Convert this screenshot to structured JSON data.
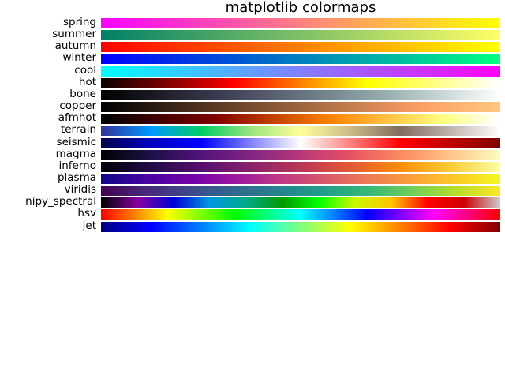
{
  "chart_data": {
    "type": "heatmap",
    "title": "matplotlib colormaps",
    "xlabel": "",
    "ylabel": "",
    "grid": false,
    "colormaps": [
      {
        "name": "spring",
        "colors": [
          "#ff00ff",
          "#ff40bf",
          "#ff8080",
          "#ffbf40",
          "#ffff00"
        ]
      },
      {
        "name": "summer",
        "colors": [
          "#008066",
          "#40a066",
          "#80c066",
          "#bfdf66",
          "#ffff66"
        ]
      },
      {
        "name": "autumn",
        "colors": [
          "#ff0000",
          "#ff4000",
          "#ff8000",
          "#ffbf00",
          "#ffff00"
        ]
      },
      {
        "name": "winter",
        "colors": [
          "#0000ff",
          "#0040df",
          "#0080bf",
          "#00bf9f",
          "#00ff80"
        ]
      },
      {
        "name": "cool",
        "colors": [
          "#00ffff",
          "#40bfff",
          "#8080ff",
          "#bf40ff",
          "#ff00ff"
        ]
      },
      {
        "name": "hot",
        "colors": [
          "#0b0000",
          "#800000",
          "#ff0000",
          "#ff8000",
          "#ffff00",
          "#ffff80",
          "#ffffff"
        ]
      },
      {
        "name": "bone",
        "colors": [
          "#000000",
          "#1c1c27",
          "#39394f",
          "#575f6f",
          "#74878f",
          "#97aeae",
          "#cbd7d7",
          "#ffffff"
        ]
      },
      {
        "name": "copper",
        "colors": [
          "#000000",
          "#3f2819",
          "#7e5032",
          "#bd784b",
          "#fc9f65",
          "#ffc77f"
        ]
      },
      {
        "name": "afmhot",
        "colors": [
          "#000000",
          "#400000",
          "#800000",
          "#c04000",
          "#ff8000",
          "#ffc040",
          "#ffff80",
          "#ffffff"
        ]
      },
      {
        "name": "terrain",
        "colors": [
          "#333399",
          "#0099ff",
          "#00cc66",
          "#99e57f",
          "#ffff99",
          "#ccbb88",
          "#806b5e",
          "#c0b3ae",
          "#ffffff"
        ]
      },
      {
        "name": "seismic",
        "colors": [
          "#00004c",
          "#0000c0",
          "#0000ff",
          "#8080ff",
          "#ffffff",
          "#ff8080",
          "#ff0000",
          "#c00000",
          "#800000"
        ]
      },
      {
        "name": "magma",
        "colors": [
          "#000004",
          "#1d1147",
          "#51127c",
          "#822681",
          "#b73779",
          "#e75263",
          "#fc8961",
          "#fec488",
          "#fcfdbf"
        ]
      },
      {
        "name": "inferno",
        "colors": [
          "#000004",
          "#1f0c48",
          "#550f6d",
          "#88226a",
          "#ba3655",
          "#e35933",
          "#f98e09",
          "#f9cb35",
          "#fcffa4"
        ]
      },
      {
        "name": "plasma",
        "colors": [
          "#0d0887",
          "#46039f",
          "#7201a8",
          "#9c179e",
          "#bd3786",
          "#d8576b",
          "#ed7953",
          "#fb9f3a",
          "#fdca26",
          "#f0f921"
        ]
      },
      {
        "name": "viridis",
        "colors": [
          "#440154",
          "#482878",
          "#3e4989",
          "#31688e",
          "#26828e",
          "#1f9e89",
          "#35b779",
          "#6ece58",
          "#b5de2b",
          "#fde725"
        ]
      },
      {
        "name": "nipy_spectral",
        "colors": [
          "#000000",
          "#8800a0",
          "#0000d5",
          "#0099dd",
          "#00aa88",
          "#009c00",
          "#00ff00",
          "#ccf800",
          "#ffc500",
          "#ff0000",
          "#cc0000",
          "#cccccc"
        ]
      },
      {
        "name": "hsv",
        "colors": [
          "#ff0000",
          "#ffff00",
          "#00ff00",
          "#00ffff",
          "#0000ff",
          "#ff00ff",
          "#ff0000"
        ]
      },
      {
        "name": "jet",
        "colors": [
          "#00007f",
          "#0000ff",
          "#007fff",
          "#00ffff",
          "#7fff7f",
          "#ffff00",
          "#ff7f00",
          "#ff0000",
          "#7f0000"
        ]
      }
    ]
  }
}
